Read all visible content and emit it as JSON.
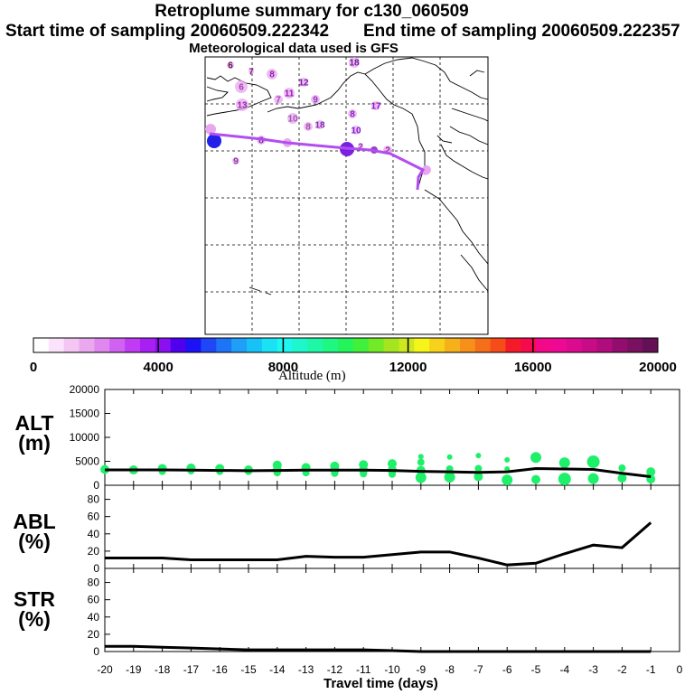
{
  "header": {
    "title": "Retroplume summary for c130_060509",
    "start_time": "Start time of sampling 20060509.222342",
    "end_time": "End time of sampling 20060509.222357",
    "met_data": "Meteorological data used is GFS"
  },
  "colorbar": {
    "label": "Altitude (m)",
    "ticks": [
      "0",
      "4000",
      "8000",
      "12000",
      "16000",
      "20000"
    ],
    "colors": [
      "#ffffff",
      "#fbe3fb",
      "#f3c6f3",
      "#eaa8ef",
      "#df86ef",
      "#d061f2",
      "#bf3cf4",
      "#a81ff4",
      "#8a10f0",
      "#5000ee",
      "#1c12f6",
      "#1f46f7",
      "#1d74f6",
      "#1f9ff6",
      "#17c2f6",
      "#1ae1f4",
      "#1ef6ef",
      "#1ef6cc",
      "#1ef7a6",
      "#1ef781",
      "#24f45c",
      "#41f03a",
      "#73ea26",
      "#a3e51e",
      "#cde81e",
      "#f5f51a",
      "#f6d21a",
      "#f6b11a",
      "#f6901a",
      "#f56e1a",
      "#f54c1a",
      "#f51a2a",
      "#f60a4b",
      "#f4088a",
      "#ec0a95",
      "#dc0a8f",
      "#c80b86",
      "#b00c7e",
      "#930d6f",
      "#7a1060",
      "#631055"
    ]
  },
  "map": {
    "labels": [
      {
        "text": "6",
        "c": "#5a1a4a"
      },
      {
        "text": "7",
        "c": "#7a1a7a"
      },
      {
        "text": "8",
        "c": "#8a20a0"
      },
      {
        "text": "6",
        "c": "#a040b0"
      },
      {
        "text": "11",
        "c": "#9a16c0"
      },
      {
        "text": "12",
        "c": "#7e18b0"
      },
      {
        "text": "7",
        "c": "#a045b8"
      },
      {
        "text": "9",
        "c": "#9038c0"
      },
      {
        "text": "13",
        "c": "#9a2ab0"
      },
      {
        "text": "10",
        "c": "#9a5ab4"
      },
      {
        "text": "8",
        "c": "#a050b0"
      },
      {
        "text": "18",
        "c": "#8030b0"
      },
      {
        "text": "8",
        "c": "#8a20c0"
      },
      {
        "text": "10",
        "c": "#7a20d0"
      },
      {
        "text": "17",
        "c": "#8a18c0"
      },
      {
        "text": "18",
        "c": "#6a1a9a"
      },
      {
        "text": "9",
        "c": "#8a40a0"
      },
      {
        "text": "2",
        "c": "#9030a0"
      },
      {
        "text": "1",
        "c": "#7a1090"
      },
      {
        "text": "2",
        "c": "#8a2aa0"
      },
      {
        "text": "8",
        "c": "#6a2a9a"
      }
    ]
  },
  "panels": {
    "alt": {
      "label_top": "ALT",
      "label_bottom": "(m)"
    },
    "abl": {
      "label_top": "ABL",
      "label_bottom": "(%)"
    },
    "str": {
      "label_top": "STR",
      "label_bottom": "(%)"
    },
    "xlabel": "Travel time (days)"
  },
  "chart_data": [
    {
      "type": "line",
      "title": "ALT (m)",
      "ylabel": "ALT (m)",
      "ylim": [
        0,
        20000
      ],
      "yticks": [
        "0",
        "5000",
        "10000",
        "15000",
        "20000"
      ],
      "x": [
        -20,
        -19,
        -18,
        -17,
        -16,
        -15,
        -14,
        -13,
        -12,
        -11,
        -10,
        -9,
        -8,
        -7,
        -6,
        -5,
        -4,
        -3,
        -2,
        -1
      ],
      "values": [
        3200,
        3200,
        3200,
        3150,
        3100,
        3050,
        3100,
        3150,
        3150,
        3150,
        3100,
        2900,
        2800,
        2700,
        2800,
        3500,
        3400,
        3300,
        2500,
        1800
      ],
      "scatter": [
        [
          -20,
          3300,
          5
        ],
        [
          -19,
          3200,
          5
        ],
        [
          -18,
          3500,
          5
        ],
        [
          -18,
          2900,
          4
        ],
        [
          -17,
          3600,
          5
        ],
        [
          -17,
          3000,
          4
        ],
        [
          -16,
          3500,
          5
        ],
        [
          -16,
          2900,
          4
        ],
        [
          -15,
          3200,
          5
        ],
        [
          -15,
          2900,
          4
        ],
        [
          -14,
          4200,
          5
        ],
        [
          -14,
          3200,
          5
        ],
        [
          -14,
          2600,
          4
        ],
        [
          -13,
          3700,
          5
        ],
        [
          -13,
          2600,
          4
        ],
        [
          -12,
          4000,
          5
        ],
        [
          -12,
          3200,
          5
        ],
        [
          -12,
          2500,
          4
        ],
        [
          -11,
          4300,
          5
        ],
        [
          -11,
          3200,
          5
        ],
        [
          -11,
          2400,
          4
        ],
        [
          -10,
          4500,
          5
        ],
        [
          -10,
          3200,
          5
        ],
        [
          -10,
          2300,
          4
        ],
        [
          -9,
          6000,
          3
        ],
        [
          -9,
          4800,
          4
        ],
        [
          -9,
          3100,
          5
        ],
        [
          -9,
          1600,
          6
        ],
        [
          -8,
          5900,
          3
        ],
        [
          -8,
          3400,
          4
        ],
        [
          -8,
          1700,
          6
        ],
        [
          -7,
          6200,
          3
        ],
        [
          -7,
          3500,
          4
        ],
        [
          -7,
          1800,
          5
        ],
        [
          -6,
          5300,
          3
        ],
        [
          -6,
          3400,
          3
        ],
        [
          -6,
          1100,
          6
        ],
        [
          -5,
          5800,
          6
        ],
        [
          -5,
          1200,
          5
        ],
        [
          -4,
          4700,
          6
        ],
        [
          -4,
          1300,
          7
        ],
        [
          -3,
          4900,
          7
        ],
        [
          -3,
          1400,
          6
        ],
        [
          -2,
          3600,
          4
        ],
        [
          -2,
          1500,
          5
        ],
        [
          -1,
          2800,
          5
        ],
        [
          -1,
          1300,
          5
        ]
      ]
    },
    {
      "type": "line",
      "title": "ABL (%)",
      "ylabel": "ABL (%)",
      "ylim": [
        0,
        90
      ],
      "yticks": [
        "0",
        "20",
        "40",
        "60",
        "80"
      ],
      "x": [
        -20,
        -19,
        -18,
        -17,
        -16,
        -15,
        -14,
        -13,
        -12,
        -11,
        -10,
        -9,
        -8,
        -7,
        -6,
        -5,
        -4,
        -3,
        -2,
        -1
      ],
      "values": [
        12,
        12,
        12,
        10,
        10,
        10,
        10,
        14,
        13,
        13,
        16,
        19,
        19,
        12,
        4,
        6,
        17,
        27,
        24,
        53
      ]
    },
    {
      "type": "line",
      "title": "STR (%)",
      "ylabel": "STR (%)",
      "ylim": [
        0,
        90
      ],
      "yticks": [
        "0",
        "20",
        "40",
        "60",
        "80"
      ],
      "x": [
        -20,
        -19,
        -18,
        -17,
        -16,
        -15,
        -14,
        -13,
        -12,
        -11,
        -10,
        -9,
        -8,
        -7,
        -6,
        -5,
        -4,
        -3,
        -2,
        -1
      ],
      "values": [
        6,
        6,
        5,
        4,
        3,
        2,
        2,
        2,
        2,
        2,
        1,
        0,
        0,
        0,
        0,
        0,
        0,
        0,
        0,
        0
      ]
    }
  ],
  "xaxis": {
    "xlim": [
      -20,
      0
    ],
    "ticks": [
      "-20",
      "-19",
      "-18",
      "-17",
      "-16",
      "-15",
      "-14",
      "-13",
      "-12",
      "-11",
      "-10",
      "-9",
      "-8",
      "-7",
      "-6",
      "-5",
      "-4",
      "-3",
      "-2",
      "-1",
      "0"
    ]
  }
}
